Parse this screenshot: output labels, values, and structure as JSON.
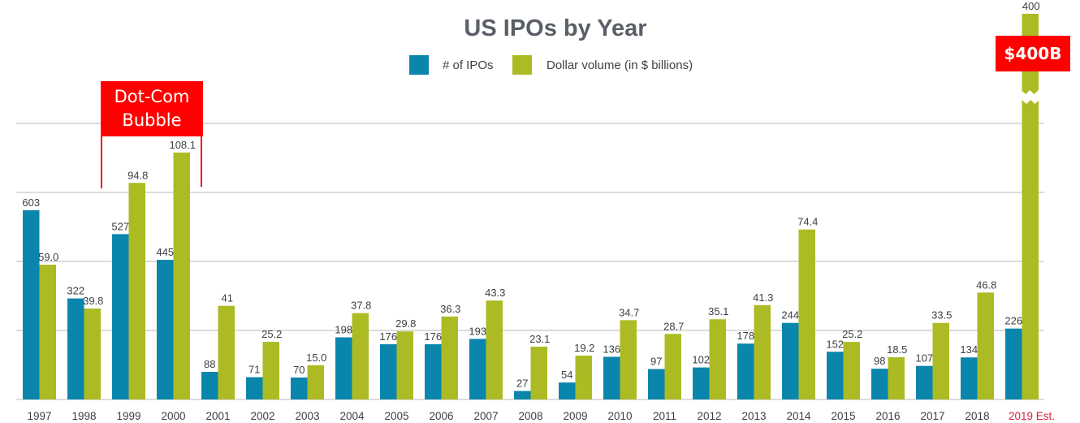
{
  "colors": {
    "ipos": "#0a86ac",
    "volume": "#acbb24",
    "grid": "#dcdcdc",
    "annotation": "#ff0000",
    "estimate_label": "#d8203a"
  },
  "annotations": {
    "dotcom_line1": "Dot-Com",
    "dotcom_line2": "Bubble",
    "estimate_callout": "$400B"
  },
  "chart_data": {
    "type": "bar",
    "title": "US IPOs by Year",
    "xlabel": "",
    "ylabel": "",
    "legend": {
      "placement": "top-center",
      "entries": [
        "# of IPOs",
        "Dollar volume (in $ billions)"
      ]
    },
    "grid": true,
    "axis_broken_for": "2019 Est. dollar volume",
    "categories": [
      "1997",
      "1998",
      "1999",
      "2000",
      "2001",
      "2002",
      "2003",
      "2004",
      "2005",
      "2006",
      "2007",
      "2008",
      "2009",
      "2010",
      "2011",
      "2012",
      "2013",
      "2014",
      "2015",
      "2016",
      "2017",
      "2018",
      "2019 Est."
    ],
    "series": [
      {
        "name": "# of IPOs",
        "values": [
          603,
          322,
          527,
          445,
          88,
          71,
          70,
          198,
          176,
          176,
          193,
          27,
          54,
          136,
          97,
          102,
          178,
          244,
          152,
          98,
          107,
          134,
          226
        ],
        "labels": [
          "603",
          "322",
          "527",
          "445",
          "88",
          "71",
          "70",
          "198",
          "176",
          "176",
          "193",
          "27",
          "54",
          "136",
          "97",
          "102",
          "178",
          "244",
          "152",
          "98",
          "107",
          "134",
          "226"
        ]
      },
      {
        "name": "Dollar volume (in $ billions)",
        "values": [
          59.0,
          39.8,
          94.8,
          108.1,
          41,
          25.2,
          15.0,
          37.8,
          29.8,
          36.3,
          43.3,
          23.1,
          19.2,
          34.7,
          28.7,
          35.1,
          41.3,
          74.4,
          25.2,
          18.5,
          33.5,
          46.8,
          400
        ],
        "labels": [
          "59.0",
          "39.8",
          "94.8",
          "108.1",
          "41",
          "25.2",
          "15.0",
          "37.8",
          "29.8",
          "36.3",
          "43.3",
          "23.1",
          "19.2",
          "34.7",
          "28.7",
          "35.1",
          "41.3",
          "74.4",
          "25.2",
          "18.5",
          "33.5",
          "46.8",
          "400"
        ]
      }
    ]
  }
}
